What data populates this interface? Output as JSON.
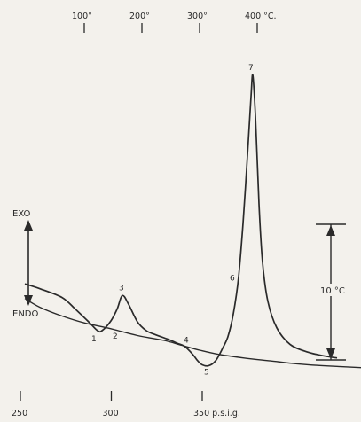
{
  "chart_data": {
    "type": "line",
    "title": "",
    "xlabel": "",
    "ylabel": "",
    "grid": false,
    "colors": {
      "ink": "#2a2a2a",
      "paper": "#f3f1ec"
    },
    "top_axis": {
      "ticks": [
        {
          "value": 100,
          "label": "100°"
        },
        {
          "value": 200,
          "label": "200°"
        },
        {
          "value": 300,
          "label": "300°"
        },
        {
          "value": 400,
          "label": "400 °C."
        }
      ]
    },
    "bottom_axis": {
      "ticks": [
        {
          "value": 250,
          "label": "250"
        },
        {
          "value": 300,
          "label": "300"
        },
        {
          "value": 350,
          "label": "350 p.s.i.g."
        }
      ]
    },
    "y_labels": {
      "exo": "EXO",
      "endo": "ENDO"
    },
    "scale_bar": {
      "label": "10 °C",
      "value_c": 10
    },
    "series": [
      {
        "points": [
          [
            3,
            6.8
          ],
          [
            20,
            6.3
          ],
          [
            45,
            5.4
          ],
          [
            60,
            4.2
          ],
          [
            75,
            2.9
          ],
          [
            85,
            2.0
          ],
          [
            90,
            2.0
          ],
          [
            100,
            3.0
          ],
          [
            107,
            4.2
          ],
          [
            113,
            5.6
          ],
          [
            120,
            4.7
          ],
          [
            130,
            2.9
          ],
          [
            140,
            2.0
          ],
          [
            150,
            1.6
          ],
          [
            165,
            1.1
          ],
          [
            175,
            0.7
          ],
          [
            183,
            0.4
          ],
          [
            192,
            -0.4
          ],
          [
            198,
            -1.1
          ],
          [
            203,
            -1.5
          ],
          [
            210,
            -1.6
          ],
          [
            218,
            -1.1
          ],
          [
            226,
            0.2
          ],
          [
            232,
            1.4
          ],
          [
            238,
            3.7
          ],
          [
            244,
            7.5
          ],
          [
            249,
            13.0
          ],
          [
            254,
            20.0
          ],
          [
            258,
            26.0
          ],
          [
            260,
            28.2
          ],
          [
            263,
            24.0
          ],
          [
            267,
            15.0
          ],
          [
            271,
            9.0
          ],
          [
            277,
            5.0
          ],
          [
            287,
            2.3
          ],
          [
            302,
            0.6
          ],
          [
            322,
            -0.2
          ],
          [
            341,
            -0.6
          ],
          [
            355,
            -0.8
          ]
        ]
      },
      {
        "points": [
          [
            3,
            5.3
          ],
          [
            20,
            4.4
          ],
          [
            45,
            3.5
          ],
          [
            70,
            2.8
          ],
          [
            100,
            2.2
          ],
          [
            130,
            1.5
          ],
          [
            160,
            1.0
          ],
          [
            180,
            0.5
          ],
          [
            200,
            0.0
          ],
          [
            220,
            -0.4
          ],
          [
            250,
            -0.8
          ],
          [
            280,
            -1.1
          ],
          [
            310,
            -1.4
          ],
          [
            340,
            -1.6
          ],
          [
            384,
            -1.8
          ]
        ]
      }
    ],
    "point_labels": [
      {
        "label": "1",
        "x": 85,
        "y": 2.0
      },
      {
        "label": "2",
        "x": 100,
        "y": 2.0
      },
      {
        "label": "3",
        "x": 113,
        "y": 5.6
      },
      {
        "label": "4",
        "x": 183,
        "y": 0.4
      },
      {
        "label": "5",
        "x": 203,
        "y": -1.5
      },
      {
        "label": "6",
        "x": 244,
        "y": 7.5
      },
      {
        "label": "7",
        "x": 260,
        "y": 28.2
      }
    ]
  }
}
